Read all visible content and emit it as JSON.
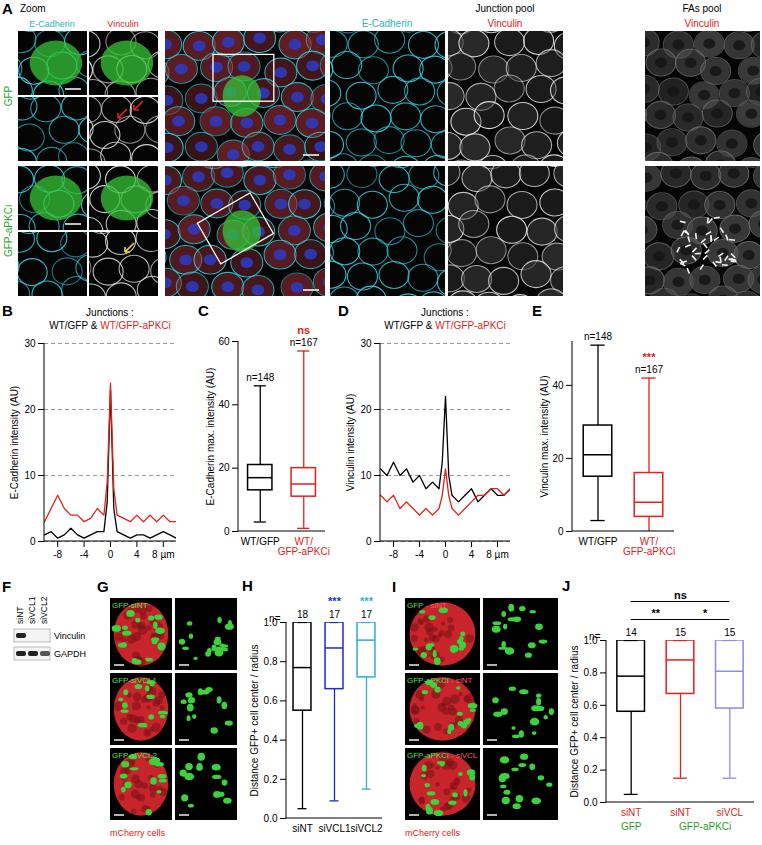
{
  "figure_a": {
    "panel_label": "A",
    "zoom_title": "Zoom",
    "zoom_columns": [
      "E-Cadherin",
      "Vinculin"
    ],
    "rows": [
      "GFP",
      "GFP-aPKCi"
    ],
    "overview_columns": [
      {
        "label": "E-Cadherin"
      },
      {
        "title": "Junction pool",
        "label": "Vinculin"
      },
      {
        "title": "FAs pool",
        "label": "Vinculin"
      }
    ]
  },
  "figure_f": {
    "panel_label": "F",
    "lanes": [
      "siNT",
      "siVCL1",
      "siVCL2"
    ],
    "rows": [
      "Vinculin",
      "GAPDH"
    ]
  },
  "figure_g": {
    "panel_label": "G",
    "rows": [
      "GFP-siNT",
      "GFP-siVCL1",
      "GFP-siVCL2"
    ],
    "caption": "mCherry cells"
  },
  "figure_i": {
    "panel_label": "I",
    "rows": [
      [
        "GFP",
        "siNT"
      ],
      [
        "GFP-aPKCi",
        "siNT"
      ],
      [
        "GFP-aPKCi",
        "siVCL"
      ]
    ],
    "separator": " - ",
    "caption": "mCherry cells"
  },
  "chart_data": [
    {
      "panel_label": "B",
      "type": "line",
      "title": "Junctions :",
      "subtitle": "WT/GFP & WT/GFP-aPKCi",
      "y_label": "E-Cadherin intensity (AU)",
      "x": [
        -10,
        -9,
        -8,
        -7,
        -6,
        -5,
        -4,
        -3,
        -2,
        -1,
        -0.5,
        0,
        0.5,
        1,
        2,
        3,
        4,
        5,
        6,
        7,
        8,
        9,
        10
      ],
      "series": [
        {
          "name": "WT/GFP",
          "color": "#000000",
          "values": [
            1,
            1.5,
            0.5,
            1,
            2,
            1,
            0.5,
            1,
            1.5,
            1.5,
            6,
            23,
            5,
            1.5,
            1,
            0.5,
            1,
            1,
            0.5,
            1,
            1.5,
            1,
            0.5
          ]
        },
        {
          "name": "WT/GFP-aPKCi",
          "color": "#e32119",
          "values": [
            3,
            5,
            7,
            5,
            4,
            4,
            3,
            3.5,
            5,
            4,
            9,
            24,
            8,
            4,
            3.5,
            3,
            4,
            3,
            4,
            3,
            4,
            3,
            3
          ]
        }
      ],
      "xlim": [
        -10,
        10
      ],
      "xticks": [
        -8,
        -4,
        0,
        4,
        {
          "value": 8,
          "label": "8 µm"
        }
      ],
      "ylim": [
        0,
        30
      ],
      "yticks": [
        0,
        10,
        20,
        30
      ],
      "grid": true
    },
    {
      "panel_label": "C",
      "type": "box",
      "y_label": "E-Cadherin max. intensity (AU)",
      "categories": [
        "WT/GFP",
        "WT/GFP-aPKCi"
      ],
      "colors": [
        "#000000",
        "#e32119"
      ],
      "min": [
        3,
        1
      ],
      "q1": [
        13,
        11
      ],
      "median": [
        17,
        15
      ],
      "q3": [
        21,
        20
      ],
      "max": [
        46,
        57
      ],
      "n_prefix": "n=",
      "n": [
        148,
        167
      ],
      "annotations": [
        {
          "category": "WT/GFP-aPKCi",
          "label": "ns",
          "color": "#e32119"
        }
      ],
      "ylim": [
        0,
        60
      ],
      "yticks": [
        0,
        20,
        40,
        60
      ]
    },
    {
      "panel_label": "D",
      "type": "line",
      "title": "Junctions :",
      "subtitle": "WT/GFP & WT/GFP-aPKCi",
      "y_label": "Vinculin intensity (AU)",
      "x": [
        -10,
        -9,
        -8,
        -7,
        -6,
        -5,
        -4,
        -3,
        -2,
        -1,
        -0.5,
        0,
        0.5,
        1,
        2,
        3,
        4,
        5,
        6,
        7,
        8,
        9,
        10
      ],
      "series": [
        {
          "name": "WT/GFP",
          "color": "#000000",
          "values": [
            11,
            10,
            12,
            10,
            11,
            9,
            10,
            8,
            9,
            8,
            12,
            22,
            10,
            7,
            6,
            7,
            8,
            6,
            7,
            8,
            7,
            7,
            8
          ]
        },
        {
          "name": "WT/GFP-aPKCi",
          "color": "#e32119",
          "values": [
            7,
            6,
            7,
            5,
            6,
            5,
            4,
            5,
            4,
            5,
            7,
            11,
            7,
            5,
            4,
            5,
            6,
            7,
            7,
            8,
            8,
            7,
            8
          ]
        }
      ],
      "xlim": [
        -10,
        10
      ],
      "xticks": [
        -8,
        -4,
        0,
        4,
        {
          "value": 8,
          "label": "8 µm"
        }
      ],
      "ylim": [
        0,
        30
      ],
      "yticks": [
        0,
        10,
        20,
        30
      ],
      "grid": true
    },
    {
      "panel_label": "E",
      "type": "box",
      "y_label": "Vinculin max. intensity (AU)",
      "categories": [
        "WT/GFP",
        "WT/GFP-aPKCi"
      ],
      "colors": [
        "#000000",
        "#e32119"
      ],
      "min": [
        3,
        0
      ],
      "q1": [
        15,
        4
      ],
      "median": [
        21,
        8
      ],
      "q3": [
        29,
        16
      ],
      "max": [
        51,
        42
      ],
      "n_prefix": "n=",
      "n": [
        148,
        167
      ],
      "annotations": [
        {
          "category": "WT/GFP-aPKCi",
          "label": "***",
          "color": "#e32119"
        }
      ],
      "ylim": [
        0,
        52
      ],
      "yticks": [
        0,
        20,
        40
      ]
    },
    {
      "panel_label": "H",
      "type": "box",
      "y_label": "Distance GFP+ cell center / radius",
      "categories": [
        "siNT",
        "siVCL1",
        "siVCL2"
      ],
      "colors": [
        "#000000",
        "#1f29c9",
        "#34a9d6"
      ],
      "min": [
        0.05,
        0.09,
        0.15
      ],
      "q1": [
        0.55,
        0.66,
        0.72
      ],
      "median": [
        0.77,
        0.87,
        0.91
      ],
      "q3": [
        1,
        1,
        1
      ],
      "max": [
        1,
        1,
        1
      ],
      "n_prefix": "n=",
      "n": [
        18,
        17,
        17
      ],
      "annotations": [
        {
          "category": "siVCL1",
          "label": "***",
          "color": "#1f29c9"
        },
        {
          "category": "siVCL2",
          "label": "***",
          "color": "#34a9d6"
        }
      ],
      "ylim": [
        0,
        1
      ],
      "yticks": [
        {
          "value": 0,
          "label": "0.0"
        },
        0.2,
        0.4,
        0.6,
        0.8,
        {
          "value": 1,
          "label": "1.0"
        }
      ]
    },
    {
      "panel_label": "J",
      "type": "box",
      "y_label": "Distance GFP+ cell center / radius",
      "categories": [
        "siNT",
        "siNT",
        "siVCL"
      ],
      "colors": [
        "#000000",
        "#e32119",
        "#8b8be8"
      ],
      "min": [
        0.05,
        0.15,
        0.15
      ],
      "q1": [
        0.56,
        0.67,
        0.58
      ],
      "median": [
        0.78,
        0.88,
        0.81
      ],
      "q3": [
        1,
        1,
        1
      ],
      "max": [
        1,
        1,
        1
      ],
      "n_prefix": "n=",
      "n": [
        14,
        15,
        15
      ],
      "groups": [
        {
          "label": "GFP",
          "from": 0,
          "to": 0
        },
        {
          "label": "GFP-aPKCi",
          "from": 1,
          "to": 2
        }
      ],
      "comparisons": [
        {
          "from": 0,
          "to": 2,
          "label": "ns"
        },
        {
          "from": 0,
          "to": 1,
          "label": "**"
        },
        {
          "from": 1,
          "to": 2,
          "label": "*"
        }
      ],
      "ylim": [
        0,
        1
      ],
      "yticks": [
        {
          "value": 0,
          "label": "0.0"
        },
        0.2,
        0.4,
        0.6,
        0.8,
        {
          "value": 1,
          "label": "1.0"
        }
      ]
    }
  ]
}
